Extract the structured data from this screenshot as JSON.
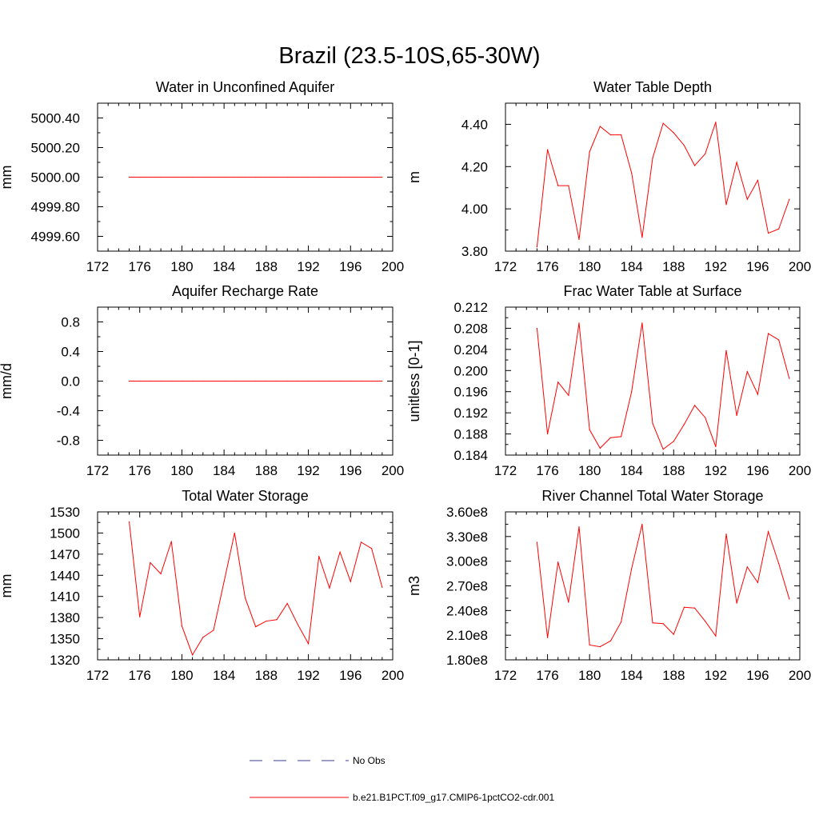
{
  "figure": {
    "title": "Brazil (23.5-10S,65-30W)"
  },
  "legend": {
    "entries": [
      {
        "label": "No Obs",
        "color": "#3b3b9a",
        "style": "dashed"
      },
      {
        "label": "b.e21.B1PCT.f09_g17.CMIP6-1pctCO2-cdr.001",
        "color": "#ff0000",
        "style": "solid"
      }
    ]
  },
  "chart_data": [
    {
      "type": "line",
      "title": "Water in Unconfined Aquifer",
      "xlabel": "",
      "ylabel": "mm",
      "xlim": [
        172,
        200
      ],
      "ylim": [
        4999.5,
        5000.5
      ],
      "xticks": [
        172,
        176,
        180,
        184,
        188,
        192,
        196,
        200
      ],
      "yticks": [
        4999.6,
        4999.8,
        5000.0,
        5000.2,
        5000.4
      ],
      "ytick_labels": [
        "4999.60",
        "4999.80",
        "5000.00",
        "5000.20",
        "5000.40"
      ],
      "grid": false,
      "series": [
        {
          "color": "#ff0000",
          "x": [
            175,
            176,
            177,
            178,
            179,
            180,
            181,
            182,
            183,
            184,
            185,
            186,
            187,
            188,
            189,
            190,
            191,
            192,
            193,
            194,
            195,
            196,
            197,
            198,
            199
          ],
          "y": [
            5000,
            5000,
            5000,
            5000,
            5000,
            5000,
            5000,
            5000,
            5000,
            5000,
            5000,
            5000,
            5000,
            5000,
            5000,
            5000,
            5000,
            5000,
            5000,
            5000,
            5000,
            5000,
            5000,
            5000,
            5000
          ]
        }
      ]
    },
    {
      "type": "line",
      "title": "Water Table Depth",
      "xlabel": "",
      "ylabel": "m",
      "xlim": [
        172,
        200
      ],
      "ylim": [
        3.8,
        4.5
      ],
      "xticks": [
        172,
        176,
        180,
        184,
        188,
        192,
        196,
        200
      ],
      "yticks": [
        3.8,
        4.0,
        4.2,
        4.4
      ],
      "ytick_labels": [
        "3.80",
        "4.00",
        "4.20",
        "4.40"
      ],
      "grid": false,
      "series": [
        {
          "color": "#ff0000",
          "x": [
            175,
            176,
            177,
            178,
            179,
            180,
            181,
            182,
            183,
            184,
            185,
            186,
            187,
            188,
            189,
            190,
            191,
            192,
            193,
            194,
            195,
            196,
            197,
            198,
            199
          ],
          "y": [
            3.82,
            4.28,
            4.11,
            4.11,
            3.855,
            4.27,
            4.39,
            4.35,
            4.35,
            4.17,
            3.865,
            4.24,
            4.405,
            4.36,
            4.3,
            4.205,
            4.26,
            4.41,
            4.02,
            4.22,
            4.045,
            4.135,
            3.885,
            3.905,
            4.045
          ]
        }
      ]
    },
    {
      "type": "line",
      "title": "Aquifer Recharge Rate",
      "xlabel": "",
      "ylabel": "mm/d",
      "xlim": [
        172,
        200
      ],
      "ylim": [
        -1.0,
        1.0
      ],
      "xticks": [
        172,
        176,
        180,
        184,
        188,
        192,
        196,
        200
      ],
      "yticks": [
        -0.8,
        -0.4,
        0.0,
        0.4,
        0.8
      ],
      "ytick_labels": [
        "-0.8",
        "-0.4",
        "0.0",
        "0.4",
        "0.8"
      ],
      "grid": false,
      "series": [
        {
          "color": "#ff0000",
          "x": [
            175,
            176,
            177,
            178,
            179,
            180,
            181,
            182,
            183,
            184,
            185,
            186,
            187,
            188,
            189,
            190,
            191,
            192,
            193,
            194,
            195,
            196,
            197,
            198,
            199
          ],
          "y": [
            0,
            0,
            0,
            0,
            0,
            0,
            0,
            0,
            0,
            0,
            0,
            0,
            0,
            0,
            0,
            0,
            0,
            0,
            0,
            0,
            0,
            0,
            0,
            0,
            0
          ]
        }
      ]
    },
    {
      "type": "line",
      "title": "Frac Water Table at Surface",
      "xlabel": "",
      "ylabel": "unitless [0-1]",
      "xlim": [
        172,
        200
      ],
      "ylim": [
        0.184,
        0.212
      ],
      "xticks": [
        172,
        176,
        180,
        184,
        188,
        192,
        196,
        200
      ],
      "yticks": [
        0.184,
        0.188,
        0.192,
        0.196,
        0.2,
        0.204,
        0.208,
        0.212
      ],
      "ytick_labels": [
        "0.184",
        "0.188",
        "0.192",
        "0.196",
        "0.200",
        "0.204",
        "0.208",
        "0.212"
      ],
      "grid": false,
      "series": [
        {
          "color": "#ff0000",
          "x": [
            175,
            176,
            177,
            178,
            179,
            180,
            181,
            182,
            183,
            184,
            185,
            186,
            187,
            188,
            189,
            190,
            191,
            192,
            193,
            194,
            195,
            196,
            197,
            198,
            199
          ],
          "y": [
            0.208,
            0.188,
            0.1978,
            0.1953,
            0.209,
            0.1888,
            0.1853,
            0.1873,
            0.1875,
            0.196,
            0.209,
            0.19,
            0.1851,
            0.1866,
            0.1898,
            0.1934,
            0.1911,
            0.1856,
            0.2038,
            0.1915,
            0.1998,
            0.1955,
            0.207,
            0.2058,
            0.1985
          ]
        }
      ]
    },
    {
      "type": "line",
      "title": "Total Water Storage",
      "xlabel": "",
      "ylabel": "mm",
      "xlim": [
        172,
        200
      ],
      "ylim": [
        1320,
        1530
      ],
      "xticks": [
        172,
        176,
        180,
        184,
        188,
        192,
        196,
        200
      ],
      "yticks": [
        1320,
        1350,
        1380,
        1410,
        1440,
        1470,
        1500,
        1530
      ],
      "ytick_labels": [
        "1320",
        "1350",
        "1380",
        "1410",
        "1440",
        "1470",
        "1500",
        "1530"
      ],
      "grid": false,
      "series": [
        {
          "color": "#ff0000",
          "x": [
            175,
            176,
            177,
            178,
            179,
            180,
            181,
            182,
            183,
            184,
            185,
            186,
            187,
            188,
            189,
            190,
            191,
            192,
            193,
            194,
            195,
            196,
            197,
            198,
            199
          ],
          "y": [
            1516,
            1381,
            1458,
            1442,
            1488,
            1368,
            1327,
            1352,
            1362,
            1431,
            1500,
            1408,
            1367,
            1375,
            1377,
            1400,
            1370,
            1343,
            1467,
            1422,
            1473,
            1431,
            1487,
            1478,
            1423
          ]
        }
      ]
    },
    {
      "type": "line",
      "title": "River Channel Total Water Storage",
      "xlabel": "",
      "ylabel": "m3",
      "xlim": [
        172,
        200
      ],
      "ylim": [
        180000000,
        360000000
      ],
      "xticks": [
        172,
        176,
        180,
        184,
        188,
        192,
        196,
        200
      ],
      "yticks": [
        180000000,
        210000000,
        240000000,
        270000000,
        300000000,
        330000000,
        360000000
      ],
      "ytick_labels": [
        "1.80e8",
        "2.10e8",
        "2.40e8",
        "2.70e8",
        "3.00e8",
        "3.30e8",
        "3.60e8"
      ],
      "grid": false,
      "series": [
        {
          "color": "#ff0000",
          "x": [
            175,
            176,
            177,
            178,
            179,
            180,
            181,
            182,
            183,
            184,
            185,
            186,
            187,
            188,
            189,
            190,
            191,
            192,
            193,
            194,
            195,
            196,
            197,
            198,
            199
          ],
          "y": [
            323000000,
            207000000,
            299000000,
            250000000,
            342000000,
            198000000,
            196000000,
            203000000,
            226000000,
            291000000,
            345000000,
            225000000,
            224000000,
            211000000,
            244000000,
            243000000,
            227000000,
            209000000,
            333000000,
            249000000,
            293000000,
            274000000,
            336000000,
            297000000,
            254000000
          ]
        }
      ]
    }
  ]
}
